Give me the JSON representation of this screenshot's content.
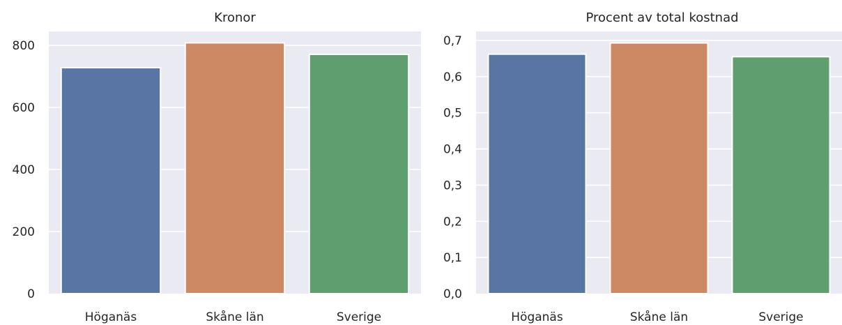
{
  "chart_data": [
    {
      "type": "bar",
      "title": "Kronor",
      "xlabel": "",
      "ylabel": "",
      "categories": [
        "Höganäs",
        "Skåne län",
        "Sverige"
      ],
      "values": [
        728,
        808,
        771
      ],
      "colors": [
        "#5875a4",
        "#cc8963",
        "#5f9e6e"
      ],
      "ylim": [
        0,
        845
      ],
      "yticks": [
        0,
        200,
        400,
        600,
        800
      ],
      "ytick_labels": [
        "0",
        "200",
        "400",
        "600",
        "800"
      ],
      "grid": true,
      "legend": "none"
    },
    {
      "type": "bar",
      "title": "Procent av total kostnad",
      "xlabel": "",
      "ylabel": "",
      "categories": [
        "Höganäs",
        "Skåne län",
        "Sverige"
      ],
      "values": [
        0.662,
        0.693,
        0.655
      ],
      "colors": [
        "#5875a4",
        "#cc8963",
        "#5f9e6e"
      ],
      "ylim": [
        0,
        0.725
      ],
      "yticks": [
        0,
        0.1,
        0.2,
        0.3,
        0.4,
        0.5,
        0.6,
        0.7
      ],
      "ytick_labels": [
        "0,0",
        "0,1",
        "0,2",
        "0,3",
        "0,4",
        "0,5",
        "0,6",
        "0,7"
      ],
      "grid": true,
      "legend": "none"
    }
  ]
}
